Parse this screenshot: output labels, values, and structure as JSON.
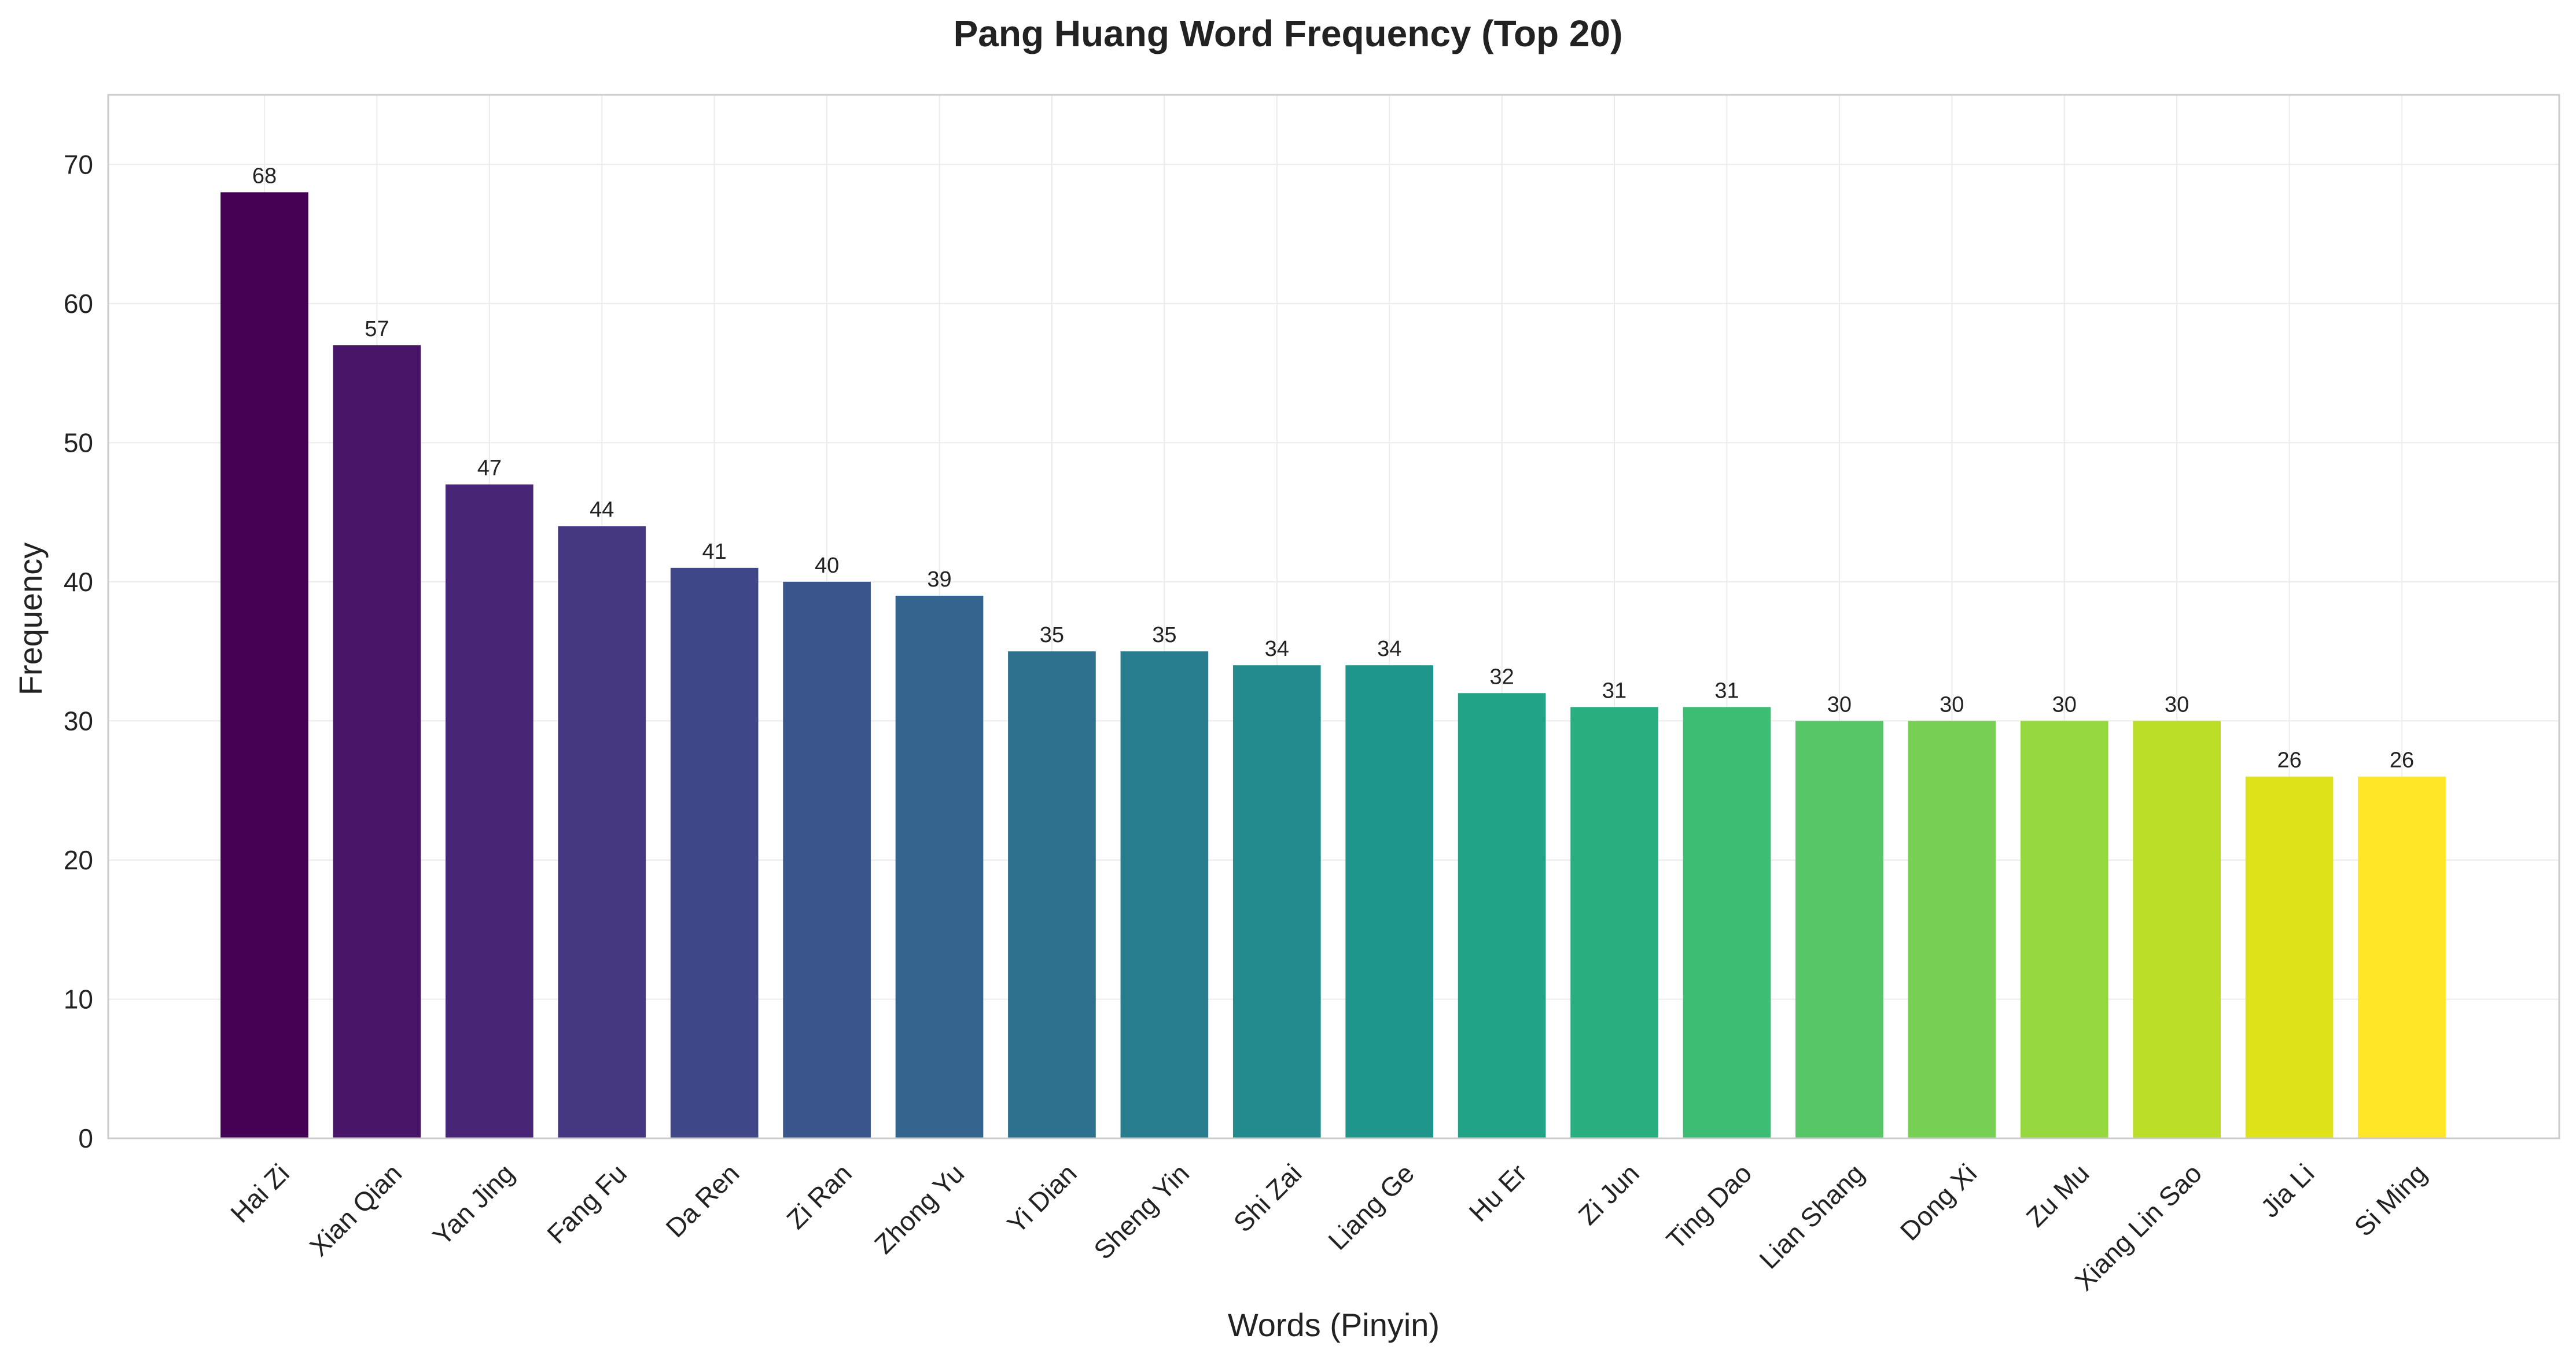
{
  "chart_data": {
    "type": "bar",
    "title": "Pang Huang Word Frequency (Top 20)",
    "xlabel": "Words (Pinyin)",
    "ylabel": "Frequency",
    "ylim": [
      0,
      75
    ],
    "yticks": [
      0,
      10,
      20,
      30,
      40,
      50,
      60,
      70
    ],
    "grid": true,
    "legend": "none",
    "colormap": "viridis",
    "categories": [
      "Hai Zi",
      "Xian Qian",
      "Yan Jing",
      "Fang Fu",
      "Da Ren",
      "Zi Ran",
      "Zhong Yu",
      "Yi Dian",
      "Sheng Yin",
      "Shi Zai",
      "Liang Ge",
      "Hu Er",
      "Zi Jun",
      "Ting Dao",
      "Lian Shang",
      "Dong Xi",
      "Zu Mu",
      "Xiang Lin Sao",
      "Jia Li",
      "Si Ming"
    ],
    "values": [
      68,
      57,
      47,
      44,
      41,
      40,
      39,
      35,
      35,
      34,
      34,
      32,
      31,
      31,
      30,
      30,
      30,
      30,
      26,
      26
    ],
    "colors": [
      "#440154",
      "#481467",
      "#482576",
      "#453781",
      "#3f4788",
      "#39558c",
      "#32648e",
      "#2d718e",
      "#287d8e",
      "#238a8d",
      "#1f968b",
      "#20a386",
      "#29af7f",
      "#3dbc74",
      "#56c667",
      "#75d054",
      "#95d840",
      "#bade28",
      "#dde318",
      "#fde725"
    ]
  }
}
